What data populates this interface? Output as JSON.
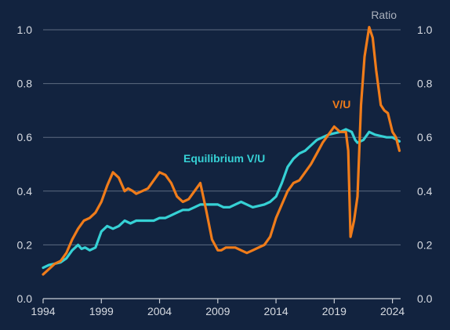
{
  "colors": {
    "background": "#12233f",
    "grid": "#5d6b80",
    "axis": "#c9ced6",
    "tick_text": "#d7dbe2",
    "vu": "#f07c1a",
    "equilibrium": "#36d1d5",
    "ratio_label": "#aab1bd"
  },
  "chart_data": {
    "type": "line",
    "ratio_label": "Ratio",
    "xlim": [
      1994,
      2024.7
    ],
    "ylim": [
      0,
      1.0
    ],
    "x_ticks": [
      1994,
      1999,
      2004,
      2009,
      2014,
      2019,
      2024
    ],
    "x_tick_labels": [
      "1994",
      "1999",
      "2004",
      "2009",
      "2014",
      "2019",
      "2024"
    ],
    "y_ticks": [
      0.0,
      0.2,
      0.4,
      0.6,
      0.8,
      1.0
    ],
    "y_tick_labels_left": [
      "0.0",
      "0.2",
      "0.4",
      "0.6",
      "0.8",
      "1.0"
    ],
    "y_tick_labels_right": [
      "0.0",
      "0.2",
      "0.4",
      "0.6",
      "0.8",
      "1.0"
    ],
    "grid": "horizontal",
    "series": [
      {
        "name": "V/U",
        "color": "#f07c1a",
        "x": [
          1994.0,
          1994.5,
          1995.0,
          1995.5,
          1996.0,
          1996.5,
          1997.0,
          1997.5,
          1998.0,
          1998.5,
          1999.0,
          1999.5,
          2000.0,
          2000.5,
          2001.0,
          2001.3,
          2001.7,
          2002.0,
          2002.5,
          2003.0,
          2003.5,
          2004.0,
          2004.5,
          2005.0,
          2005.5,
          2006.0,
          2006.5,
          2007.0,
          2007.5,
          2008.0,
          2008.5,
          2009.0,
          2009.3,
          2009.7,
          2010.0,
          2010.5,
          2011.0,
          2011.5,
          2012.0,
          2012.5,
          2013.0,
          2013.5,
          2014.0,
          2014.5,
          2015.0,
          2015.5,
          2016.0,
          2016.5,
          2017.0,
          2017.5,
          2018.0,
          2018.5,
          2019.0,
          2019.5,
          2020.0,
          2020.2,
          2020.4,
          2020.7,
          2021.0,
          2021.3,
          2021.6,
          2022.0,
          2022.3,
          2022.6,
          2023.0,
          2023.3,
          2023.6,
          2024.0,
          2024.3,
          2024.6
        ],
        "values": [
          0.09,
          0.11,
          0.13,
          0.14,
          0.17,
          0.22,
          0.26,
          0.29,
          0.3,
          0.32,
          0.36,
          0.42,
          0.47,
          0.45,
          0.4,
          0.41,
          0.4,
          0.39,
          0.4,
          0.41,
          0.44,
          0.47,
          0.46,
          0.43,
          0.38,
          0.36,
          0.37,
          0.4,
          0.43,
          0.33,
          0.22,
          0.18,
          0.18,
          0.19,
          0.19,
          0.19,
          0.18,
          0.17,
          0.18,
          0.19,
          0.2,
          0.23,
          0.3,
          0.35,
          0.4,
          0.43,
          0.44,
          0.47,
          0.5,
          0.54,
          0.58,
          0.61,
          0.64,
          0.62,
          0.62,
          0.55,
          0.23,
          0.29,
          0.38,
          0.72,
          0.9,
          1.01,
          0.97,
          0.85,
          0.72,
          0.7,
          0.69,
          0.62,
          0.6,
          0.55
        ]
      },
      {
        "name": "Equilibrium V/U",
        "color": "#36d1d5",
        "x": [
          1994.0,
          1994.5,
          1995.0,
          1995.5,
          1996.0,
          1996.5,
          1997.0,
          1997.3,
          1997.6,
          1998.0,
          1998.5,
          1999.0,
          1999.5,
          2000.0,
          2000.5,
          2001.0,
          2001.5,
          2002.0,
          2002.5,
          2003.0,
          2003.5,
          2004.0,
          2004.5,
          2005.0,
          2005.5,
          2006.0,
          2006.5,
          2007.0,
          2007.5,
          2008.0,
          2008.5,
          2009.0,
          2009.5,
          2010.0,
          2010.5,
          2011.0,
          2011.5,
          2012.0,
          2012.5,
          2013.0,
          2013.5,
          2014.0,
          2014.5,
          2015.0,
          2015.5,
          2016.0,
          2016.5,
          2017.0,
          2017.5,
          2018.0,
          2018.5,
          2019.0,
          2019.5,
          2020.0,
          2020.5,
          2020.8,
          2021.0,
          2021.5,
          2022.0,
          2022.5,
          2023.0,
          2023.5,
          2024.0,
          2024.6
        ],
        "values": [
          0.115,
          0.125,
          0.13,
          0.135,
          0.15,
          0.18,
          0.2,
          0.185,
          0.19,
          0.18,
          0.19,
          0.25,
          0.27,
          0.26,
          0.27,
          0.29,
          0.28,
          0.29,
          0.29,
          0.29,
          0.29,
          0.3,
          0.3,
          0.31,
          0.32,
          0.33,
          0.33,
          0.34,
          0.35,
          0.35,
          0.35,
          0.35,
          0.34,
          0.34,
          0.35,
          0.36,
          0.35,
          0.34,
          0.345,
          0.35,
          0.36,
          0.38,
          0.43,
          0.49,
          0.52,
          0.54,
          0.55,
          0.57,
          0.59,
          0.6,
          0.61,
          0.615,
          0.62,
          0.63,
          0.62,
          0.59,
          0.58,
          0.59,
          0.62,
          0.61,
          0.605,
          0.6,
          0.6,
          0.585
        ]
      }
    ],
    "annotations": [
      {
        "text": "V/U",
        "series": "V/U"
      },
      {
        "text": "Equilibrium V/U",
        "series": "Equilibrium V/U"
      }
    ]
  }
}
